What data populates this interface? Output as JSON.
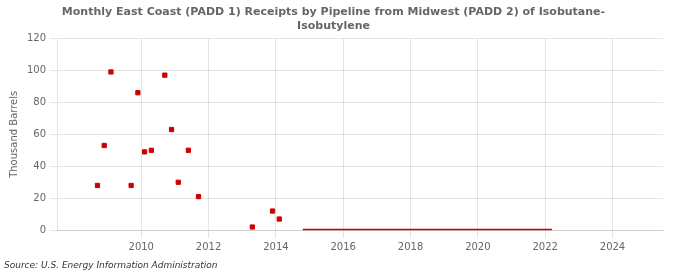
{
  "chart_data": {
    "type": "scatter",
    "title": "Monthly East Coast (PADD 1) Receipts by Pipeline from Midwest (PADD 2) of Isobutane-\nIsobutylene",
    "ylabel": "Thousand Barrels",
    "source": "Source: U.S. Energy Information Administration",
    "series": [
      {
        "type": "scatter",
        "marker": "square",
        "color": "#cc0000",
        "x": [
          2008.7,
          2008.9,
          2009.1,
          2009.7,
          2009.9,
          2010.1,
          2010.3,
          2010.7,
          2010.9,
          2011.1,
          2011.4,
          2011.7,
          2013.3,
          2013.9,
          2014.1
        ],
        "values": [
          28,
          53,
          99,
          28,
          86,
          49,
          50,
          97,
          63,
          30,
          50,
          21,
          2,
          12,
          7
        ]
      },
      {
        "type": "line",
        "line_style": "solid",
        "color": "#cc0000",
        "x": [
          2014.8,
          2022.2
        ],
        "values": [
          0,
          0
        ]
      }
    ],
    "xlim": [
      2007.5,
      2025.5
    ],
    "xticks": [
      2010,
      2012,
      2014,
      2016,
      2018,
      2020,
      2022,
      2024
    ],
    "ylim": [
      0,
      120
    ],
    "yticks": [
      0,
      20,
      40,
      60,
      80,
      100,
      120
    ],
    "grid": true
  }
}
